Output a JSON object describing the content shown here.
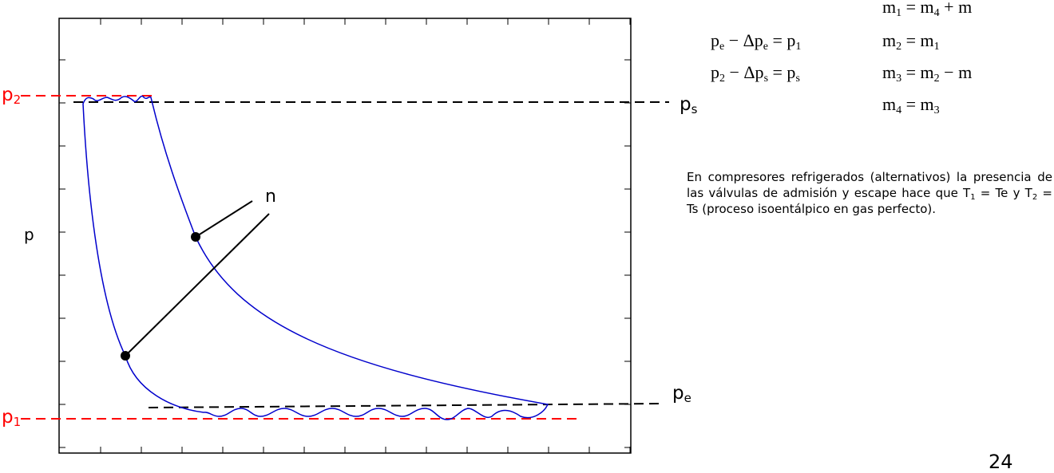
{
  "diagram": {
    "axis_label_y": "p",
    "levels": {
      "p2": {
        "base": "p",
        "sub": "2",
        "color": "#ff0000"
      },
      "ps": {
        "base": "p",
        "sub": "s",
        "color": "#000000"
      },
      "pe": {
        "base": "p",
        "sub": "e",
        "color": "#000000"
      },
      "p1": {
        "base": "p",
        "sub": "1",
        "color": "#ff0000"
      }
    },
    "polytropic_label": "n",
    "curve_color": "#0000cc"
  },
  "equations": {
    "left": [
      {
        "lhs": "p",
        "lhs_sub": "e",
        "op": " − Δp",
        "op_sub": "e",
        "eq": " = p",
        "rhs_sub": "1"
      },
      {
        "lhs": "p",
        "lhs_sub": "2",
        "op": " − Δp",
        "op_sub": "s",
        "eq": " = p",
        "rhs_sub": "s"
      }
    ],
    "right": [
      {
        "a": "m",
        "a_sub": "1",
        "b": " = m",
        "b_sub": "4",
        "c": " + m",
        "c_sub": ""
      },
      {
        "a": "m",
        "a_sub": "2",
        "b": " = m",
        "b_sub": "1",
        "c": "",
        "c_sub": ""
      },
      {
        "a": "m",
        "a_sub": "3",
        "b": " = m",
        "b_sub": "2",
        "c": " − m",
        "c_sub": ""
      },
      {
        "a": "m",
        "a_sub": "4",
        "b": " = m",
        "b_sub": "3",
        "c": "",
        "c_sub": ""
      }
    ]
  },
  "note": {
    "t1": "En compresores refrigerados (alternativos) la presencia de las válvulas de admisión y escape hace que T",
    "t1_sub": "1",
    "t2": " = Te y T",
    "t2_sub": "2",
    "t3": " = Ts (proceso isoentálpico en gas perfecto)."
  },
  "page_number": "24"
}
